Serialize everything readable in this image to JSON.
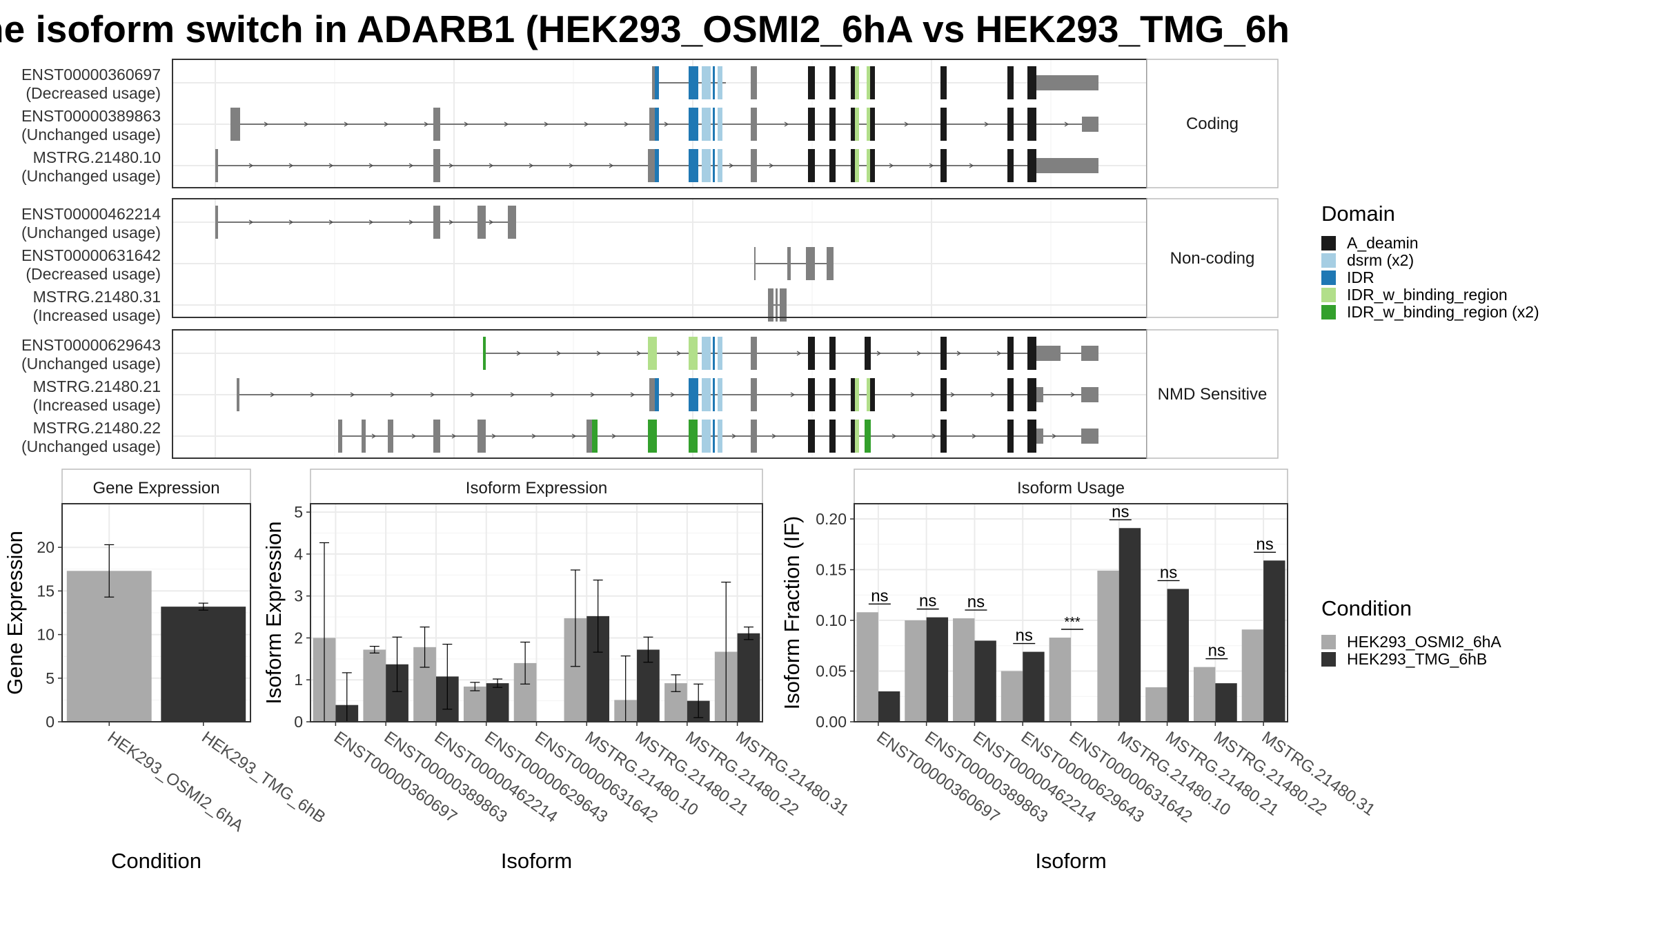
{
  "title": "he isoform switch in ADARB1 (HEK293_OSMI2_6hA vs HEK293_TMG_6h",
  "colors": {
    "cond1": "#aaaaaa",
    "cond2": "#333333",
    "intron": "#4d4d4d",
    "exon": "#808080",
    "A_deamin": "#1a1a1a",
    "dsrm": "#a6cee3",
    "IDR": "#1f78b4",
    "IDR_w_binding_region": "#b2df8a",
    "IDR_w_binding_region_x2": "#33a02c"
  },
  "structure": {
    "groups": [
      {
        "label": "Coding",
        "transcripts": [
          {
            "id": "ENST00000360697",
            "usage": "(Decreased usage)"
          },
          {
            "id": "ENST00000389863",
            "usage": "(Unchanged usage)"
          },
          {
            "id": "MSTRG.21480.10",
            "usage": "(Unchanged usage)"
          }
        ]
      },
      {
        "label": "Non-coding",
        "transcripts": [
          {
            "id": "ENST00000462214",
            "usage": "(Unchanged usage)"
          },
          {
            "id": "ENST00000631642",
            "usage": "(Decreased usage)"
          },
          {
            "id": "MSTRG.21480.31",
            "usage": "(Increased usage)"
          }
        ]
      },
      {
        "label": "NMD Sensitive",
        "transcripts": [
          {
            "id": "ENST00000629643",
            "usage": "(Unchanged usage)"
          },
          {
            "id": "MSTRG.21480.21",
            "usage": "(Increased usage)"
          },
          {
            "id": "MSTRG.21480.22",
            "usage": "(Unchanged usage)"
          }
        ]
      }
    ]
  },
  "legend_domain": {
    "title": "Domain",
    "items": [
      {
        "label": "A_deamin",
        "color": "#1a1a1a"
      },
      {
        "label": "dsrm (x2)",
        "color": "#a6cee3"
      },
      {
        "label": "IDR",
        "color": "#1f78b4"
      },
      {
        "label": "IDR_w_binding_region",
        "color": "#b2df8a"
      },
      {
        "label": "IDR_w_binding_region (x2)",
        "color": "#33a02c"
      }
    ]
  },
  "legend_condition": {
    "title": "Condition",
    "items": [
      {
        "label": "HEK293_OSMI2_6hA",
        "color": "#aaaaaa"
      },
      {
        "label": "HEK293_TMG_6hB",
        "color": "#333333"
      }
    ]
  },
  "chart_data": [
    {
      "type": "bar",
      "panel": "Gene Expression",
      "xlabel": "Condition",
      "ylabel": "Gene Expression",
      "ylim": [
        0,
        25
      ],
      "yticks": [
        0,
        5,
        10,
        15,
        20
      ],
      "categories": [
        "HEK293_OSMI2_6hA",
        "HEK293_TMG_6hB"
      ],
      "values": [
        17.3,
        13.2
      ],
      "errors": [
        [
          14.3,
          20.3
        ],
        [
          12.8,
          13.6
        ]
      ]
    },
    {
      "type": "bar",
      "panel": "Isoform Expression",
      "xlabel": "Isoform",
      "ylabel": "Isoform Expression",
      "ylim": [
        0,
        5.2
      ],
      "yticks": [
        0,
        1,
        2,
        3,
        4,
        5
      ],
      "categories": [
        "ENST00000360697",
        "ENST00000389863",
        "ENST00000462214",
        "ENST00000629643",
        "ENST00000631642",
        "MSTRG.21480.10",
        "MSTRG.21480.21",
        "MSTRG.21480.22",
        "MSTRG.21480.31"
      ],
      "series": [
        {
          "name": "HEK293_OSMI2_6hA",
          "values": [
            2.0,
            1.72,
            1.78,
            0.84,
            1.4,
            2.47,
            0.52,
            0.92,
            1.67
          ],
          "errors": [
            [
              0,
              4.27
            ],
            [
              1.64,
              1.8
            ],
            [
              1.3,
              2.26
            ],
            [
              0.74,
              0.94
            ],
            [
              0.9,
              1.9
            ],
            [
              1.32,
              3.62
            ],
            [
              0,
              1.57
            ],
            [
              0.72,
              1.12
            ],
            [
              0,
              3.33
            ]
          ]
        },
        {
          "name": "HEK293_TMG_6hB",
          "values": [
            0.4,
            1.37,
            1.08,
            0.92,
            0.0,
            2.52,
            1.72,
            0.5,
            2.11
          ],
          "errors": [
            [
              0,
              1.17
            ],
            [
              0.72,
              2.02
            ],
            [
              0.3,
              1.85
            ],
            [
              0.82,
              1.02
            ],
            [
              0,
              0
            ],
            [
              1.66,
              3.38
            ],
            [
              1.42,
              2.02
            ],
            [
              0.1,
              0.9
            ],
            [
              1.96,
              2.26
            ]
          ]
        }
      ]
    },
    {
      "type": "bar",
      "panel": "Isoform Usage",
      "xlabel": "Isoform",
      "ylabel": "Isoform Fraction (IF)",
      "ylim": [
        0,
        0.215
      ],
      "yticks": [
        "0.00",
        "0.05",
        "0.10",
        "0.15",
        "0.20"
      ],
      "categories": [
        "ENST00000360697",
        "ENST00000389863",
        "ENST00000462214",
        "ENST00000629643",
        "ENST00000631642",
        "MSTRG.21480.10",
        "MSTRG.21480.21",
        "MSTRG.21480.22",
        "MSTRG.21480.31"
      ],
      "series": [
        {
          "name": "HEK293_OSMI2_6hA",
          "values": [
            0.108,
            0.1,
            0.102,
            0.05,
            0.083,
            0.149,
            0.034,
            0.054,
            0.091
          ]
        },
        {
          "name": "HEK293_TMG_6hB",
          "values": [
            0.03,
            0.103,
            0.08,
            0.069,
            0.0,
            0.191,
            0.131,
            0.038,
            0.159
          ]
        }
      ],
      "significance": [
        "ns",
        "ns",
        "ns",
        "ns",
        "***",
        "ns",
        "ns",
        "ns",
        "ns"
      ]
    }
  ]
}
